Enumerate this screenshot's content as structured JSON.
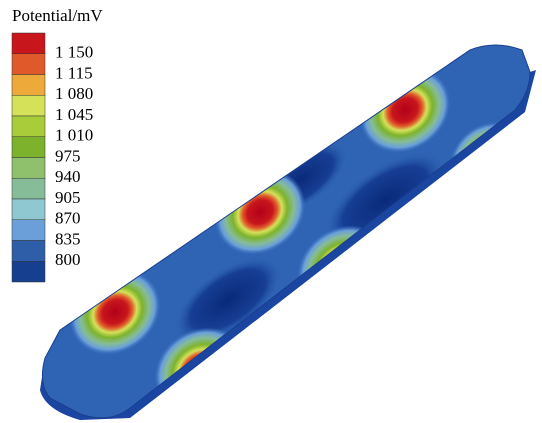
{
  "legend": {
    "title": "Potential/mV",
    "labels": [
      "1 150",
      "1 115",
      "1 080",
      "1 045",
      "1 010",
      "975",
      "940",
      "905",
      "870",
      "835",
      "800"
    ],
    "colors": [
      "#c8161d",
      "#e0592a",
      "#edaa3a",
      "#d6e15a",
      "#a9cc3a",
      "#7db32c",
      "#8fc06b",
      "#86bc98",
      "#8fc8d0",
      "#6a9fda",
      "#2f5ea8",
      "#173f8f"
    ]
  }
}
